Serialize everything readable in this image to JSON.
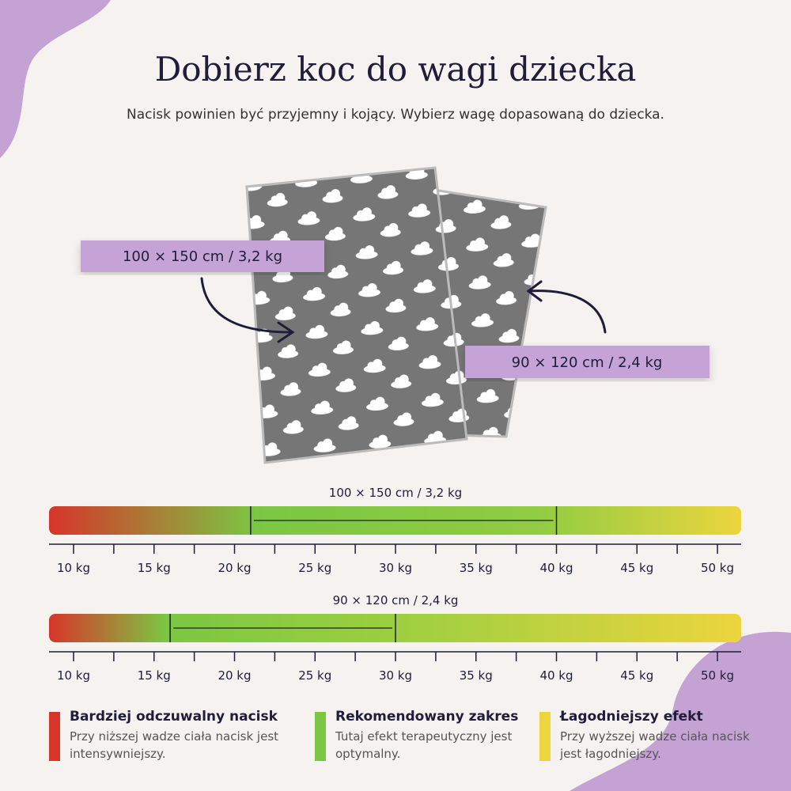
{
  "title": "Dobierz koc do wagi dziecka",
  "subtitle": "Nacisk powinien być przyjemny i kojący. Wybierz wagę dopasowaną do dziecka.",
  "callouts": [
    "100 × 150 cm / 3,2 kg",
    "90 × 120 cm / 2,4 kg"
  ],
  "scales": [
    {
      "label": "100 × 150 cm / 3,2 kg",
      "range": [
        21,
        40
      ]
    },
    {
      "label": "90 × 120 cm / 2,4 kg",
      "range": [
        16,
        30
      ]
    }
  ],
  "ticks": [
    {
      "value": 10,
      "label": "10 kg"
    },
    {
      "value": 15,
      "label": "15 kg"
    },
    {
      "value": 20,
      "label": "20 kg"
    },
    {
      "value": 25,
      "label": "25 kg"
    },
    {
      "value": 30,
      "label": "30 kg"
    },
    {
      "value": 35,
      "label": "35 kg"
    },
    {
      "value": 40,
      "label": "40 kg"
    },
    {
      "value": 45,
      "label": "45 kg"
    },
    {
      "value": 50,
      "label": "50 kg"
    }
  ],
  "legend": [
    {
      "title": "Bardziej odczuwalny nacisk",
      "text": "Przy niższej wadze ciała nacisk jest intensywniejszy."
    },
    {
      "title": "Rekomendowany zakres",
      "text": "Tutaj efekt terapeutyczny jest optymalny."
    },
    {
      "title": "Łagodniejszy efekt",
      "text": "Przy wyższej wadze ciała nacisk jest łagodniejszy."
    }
  ]
}
